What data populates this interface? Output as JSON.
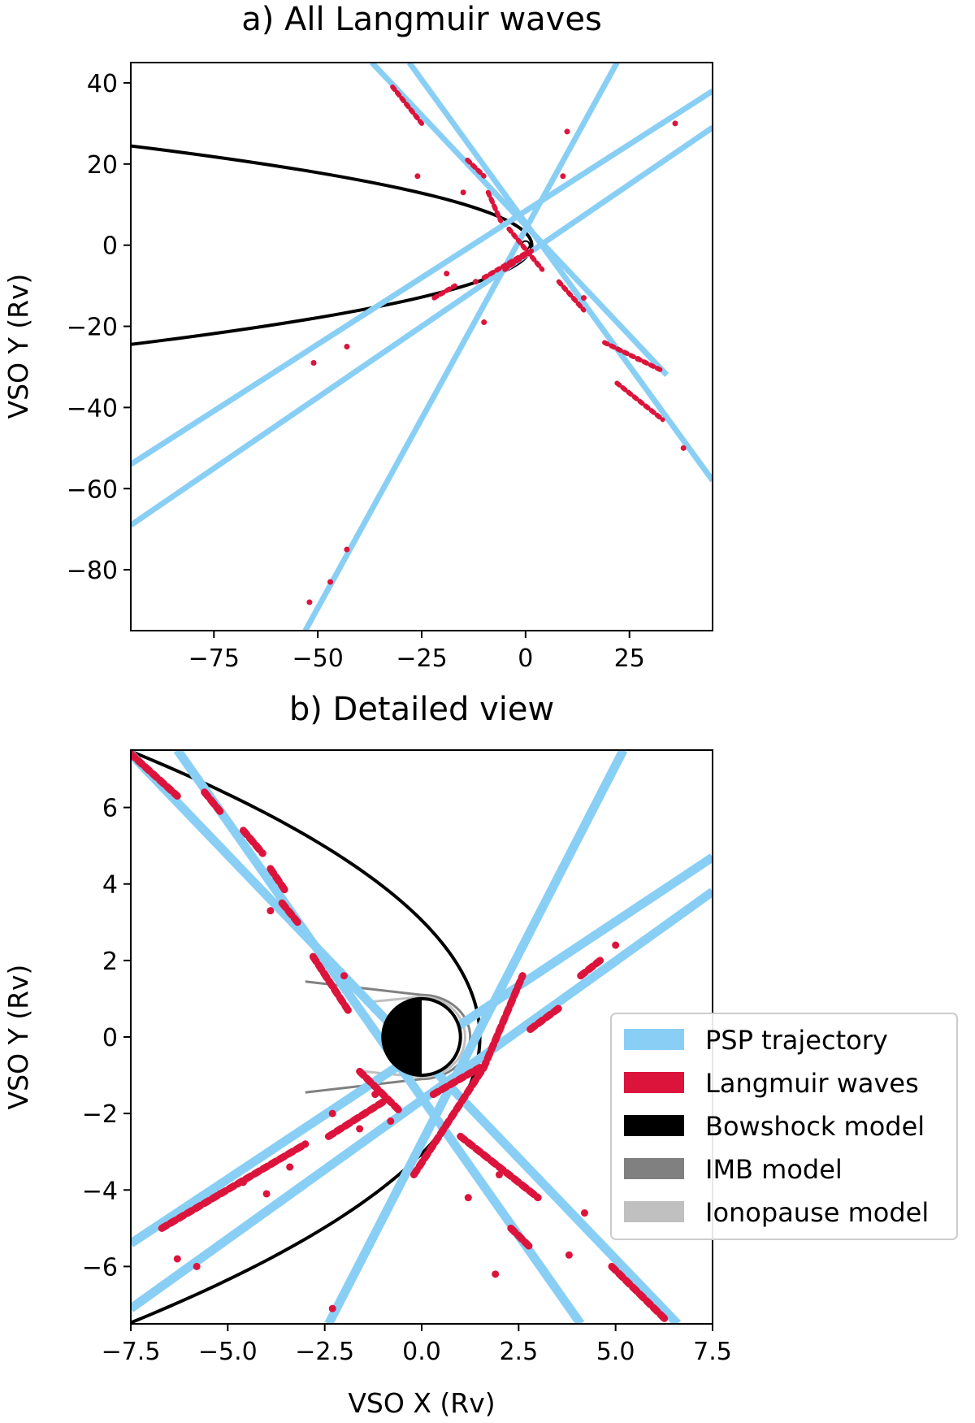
{
  "figure": {
    "colors": {
      "trajectory": "#89cff5",
      "langmuir": "#dc143c",
      "bowshock": "#000000",
      "imb": "#808080",
      "ionopause": "#c0c0c0"
    }
  },
  "chart_data": [
    {
      "type": "line",
      "title": "a) All Langmuir waves",
      "xlabel": "",
      "ylabel": "VSO Y (Rv)",
      "xlim": [
        -95,
        45
      ],
      "ylim": [
        -95,
        45
      ],
      "xticks": [
        -75,
        -50,
        -25,
        0,
        25
      ],
      "yticks": [
        40,
        20,
        0,
        -20,
        -40,
        -60,
        -80
      ],
      "xtick_labels": [
        "−75",
        "−50",
        "−25",
        "0",
        "25"
      ],
      "ytick_labels": [
        "40",
        "20",
        "0",
        "−20",
        "−40",
        "−60",
        "−80"
      ],
      "trajectories": [
        {
          "name": "PSP trajectory 1",
          "start": [
            -95,
            -54
          ],
          "end": [
            45,
            38
          ]
        },
        {
          "name": "PSP trajectory 2",
          "start": [
            -95,
            -69
          ],
          "end": [
            45,
            29
          ]
        },
        {
          "name": "PSP trajectory 3",
          "start": [
            -53,
            -95
          ],
          "end": [
            22,
            45
          ]
        },
        {
          "name": "PSP trajectory 4",
          "start": [
            -37,
            45
          ],
          "end": [
            34,
            -32
          ]
        },
        {
          "name": "PSP trajectory 5",
          "start": [
            -28,
            45
          ],
          "end": [
            45,
            -58
          ]
        }
      ],
      "langmuir_segments": [
        {
          "start": [
            -32,
            39
          ],
          "end": [
            -25,
            30
          ]
        },
        {
          "start": [
            -14,
            21
          ],
          "end": [
            -10,
            17
          ]
        },
        {
          "start": [
            -9,
            13
          ],
          "end": [
            -6,
            6
          ]
        },
        {
          "start": [
            -4,
            4
          ],
          "end": [
            4,
            -6
          ]
        },
        {
          "start": [
            8,
            -9
          ],
          "end": [
            14,
            -16
          ]
        },
        {
          "start": [
            19,
            -24
          ],
          "end": [
            33,
            -31
          ]
        },
        {
          "start": [
            22,
            -34
          ],
          "end": [
            33,
            -43
          ]
        },
        {
          "start": [
            -10,
            -8
          ],
          "end": [
            0,
            -2
          ]
        },
        {
          "start": [
            -22,
            -13
          ],
          "end": [
            -17,
            -10
          ]
        },
        {
          "start": [
            -5,
            -6
          ],
          "end": [
            2,
            -1
          ]
        }
      ],
      "langmuir_dots": [
        [
          -51,
          -29
        ],
        [
          -43,
          -25
        ],
        [
          -52,
          -88
        ],
        [
          -47,
          -83
        ],
        [
          -43,
          -75
        ],
        [
          -10,
          -19
        ],
        [
          10,
          28
        ],
        [
          9,
          17
        ],
        [
          -26,
          17
        ],
        [
          -15,
          13
        ],
        [
          14,
          -13
        ],
        [
          38,
          -50
        ],
        [
          36,
          30
        ],
        [
          -19,
          -7
        ],
        [
          -12,
          -9
        ],
        [
          27,
          -28
        ]
      ],
      "bowshock": {
        "vertex": [
          1.5,
          0
        ],
        "k": 6.2,
        "xmin": -95
      }
    },
    {
      "type": "line",
      "title": "b) Detailed view",
      "xlabel": "VSO X (Rv)",
      "ylabel": "VSO Y (Rv)",
      "xlim": [
        -7.5,
        7.5
      ],
      "ylim": [
        -7.5,
        7.5
      ],
      "xticks": [
        -7.5,
        -5,
        -2.5,
        0,
        2.5,
        5,
        7.5
      ],
      "yticks": [
        6,
        4,
        2,
        0,
        -2,
        -4,
        -6
      ],
      "xtick_labels": [
        "−7.5",
        "−5.0",
        "−2.5",
        "0.0",
        "2.5",
        "5.0",
        "7.5"
      ],
      "ytick_labels": [
        "6",
        "4",
        "2",
        "0",
        "−2",
        "−4",
        "−6"
      ],
      "trajectories": [
        {
          "name": "PSP trajectory 1",
          "start": [
            -7.5,
            -5.4
          ],
          "end": [
            7.5,
            4.7
          ]
        },
        {
          "name": "PSP trajectory 2",
          "start": [
            -7.5,
            -7.1
          ],
          "end": [
            7.5,
            3.8
          ]
        },
        {
          "name": "PSP trajectory 3",
          "start": [
            -2.4,
            -7.5
          ],
          "end": [
            5.2,
            7.5
          ]
        },
        {
          "name": "PSP trajectory 4",
          "start": [
            -7.5,
            7.4
          ],
          "end": [
            6.6,
            -7.5
          ]
        },
        {
          "name": "PSP trajectory 5",
          "start": [
            -6.3,
            7.5
          ],
          "end": [
            4.1,
            -7.5
          ]
        }
      ],
      "langmuir_segments": [
        {
          "start": [
            -7.5,
            7.4
          ],
          "end": [
            -6.3,
            6.3
          ]
        },
        {
          "start": [
            -5.6,
            6.4
          ],
          "end": [
            -5.2,
            5.9
          ]
        },
        {
          "start": [
            -4.6,
            5.4
          ],
          "end": [
            -4.1,
            4.8
          ]
        },
        {
          "start": [
            -3.9,
            4.4
          ],
          "end": [
            -3.5,
            3.8
          ]
        },
        {
          "start": [
            -3.6,
            3.5
          ],
          "end": [
            -3.2,
            3.0
          ]
        },
        {
          "start": [
            -2.8,
            2.1
          ],
          "end": [
            -1.9,
            0.7
          ]
        },
        {
          "start": [
            -1.6,
            -0.9
          ],
          "end": [
            -0.6,
            -1.9
          ]
        },
        {
          "start": [
            1.0,
            -2.6
          ],
          "end": [
            3.0,
            -4.2
          ]
        },
        {
          "start": [
            2.3,
            -5.0
          ],
          "end": [
            2.8,
            -5.5
          ]
        },
        {
          "start": [
            -0.2,
            -3.6
          ],
          "end": [
            1.6,
            -0.8
          ]
        },
        {
          "start": [
            1.6,
            -0.8
          ],
          "end": [
            2.6,
            1.6
          ]
        },
        {
          "start": [
            0.3,
            -1.5
          ],
          "end": [
            1.5,
            -0.8
          ]
        },
        {
          "start": [
            -6.7,
            -5.0
          ],
          "end": [
            -3.0,
            -2.8
          ]
        },
        {
          "start": [
            -2.4,
            -2.6
          ],
          "end": [
            -1.0,
            -1.7
          ]
        },
        {
          "start": [
            2.8,
            0.2
          ],
          "end": [
            3.6,
            0.8
          ]
        },
        {
          "start": [
            4.1,
            1.6
          ],
          "end": [
            4.6,
            2.0
          ]
        },
        {
          "start": [
            4.9,
            -6.0
          ],
          "end": [
            6.3,
            -7.4
          ]
        }
      ],
      "langmuir_dots": [
        [
          -6.3,
          -5.8
        ],
        [
          -5.2,
          -4.1
        ],
        [
          -4.6,
          -3.8
        ],
        [
          -2.3,
          -7.1
        ],
        [
          -3.4,
          -3.4
        ],
        [
          -1.6,
          -2.4
        ],
        [
          -0.8,
          -2.2
        ],
        [
          -4.0,
          -4.1
        ],
        [
          -5.8,
          -6.0
        ],
        [
          -1.2,
          -1.5
        ],
        [
          2.0,
          -3.6
        ],
        [
          4.2,
          -4.6
        ],
        [
          5.0,
          2.4
        ],
        [
          3.8,
          -5.7
        ],
        [
          1.9,
          -6.2
        ],
        [
          -2.0,
          1.6
        ],
        [
          -2.3,
          -2.0
        ],
        [
          1.2,
          -4.2
        ],
        [
          -3.9,
          3.3
        ],
        [
          0.6,
          -0.6
        ]
      ],
      "bowshock": {
        "vertex": [
          1.5,
          0
        ],
        "k": 6.2,
        "xmin": -7.5
      },
      "venus": {
        "center": [
          0,
          0
        ],
        "radius": 1
      },
      "imb_lines": [
        {
          "start": [
            -3.0,
            1.45
          ],
          "end": [
            0.0,
            1.1
          ]
        },
        {
          "start": [
            -3.0,
            -1.45
          ],
          "end": [
            0.0,
            -1.1
          ]
        }
      ],
      "ionopause_lines": [
        {
          "start": [
            -1.5,
            0.9
          ],
          "end": [
            0.0,
            1.05
          ]
        },
        {
          "start": [
            -1.5,
            -0.9
          ],
          "end": [
            0.0,
            -1.05
          ]
        }
      ],
      "legend": {
        "position": "lower-right",
        "entries": [
          "PSP trajectory",
          "Langmuir waves",
          "Bowshock model",
          "IMB model",
          "Ionopause model"
        ]
      }
    }
  ]
}
